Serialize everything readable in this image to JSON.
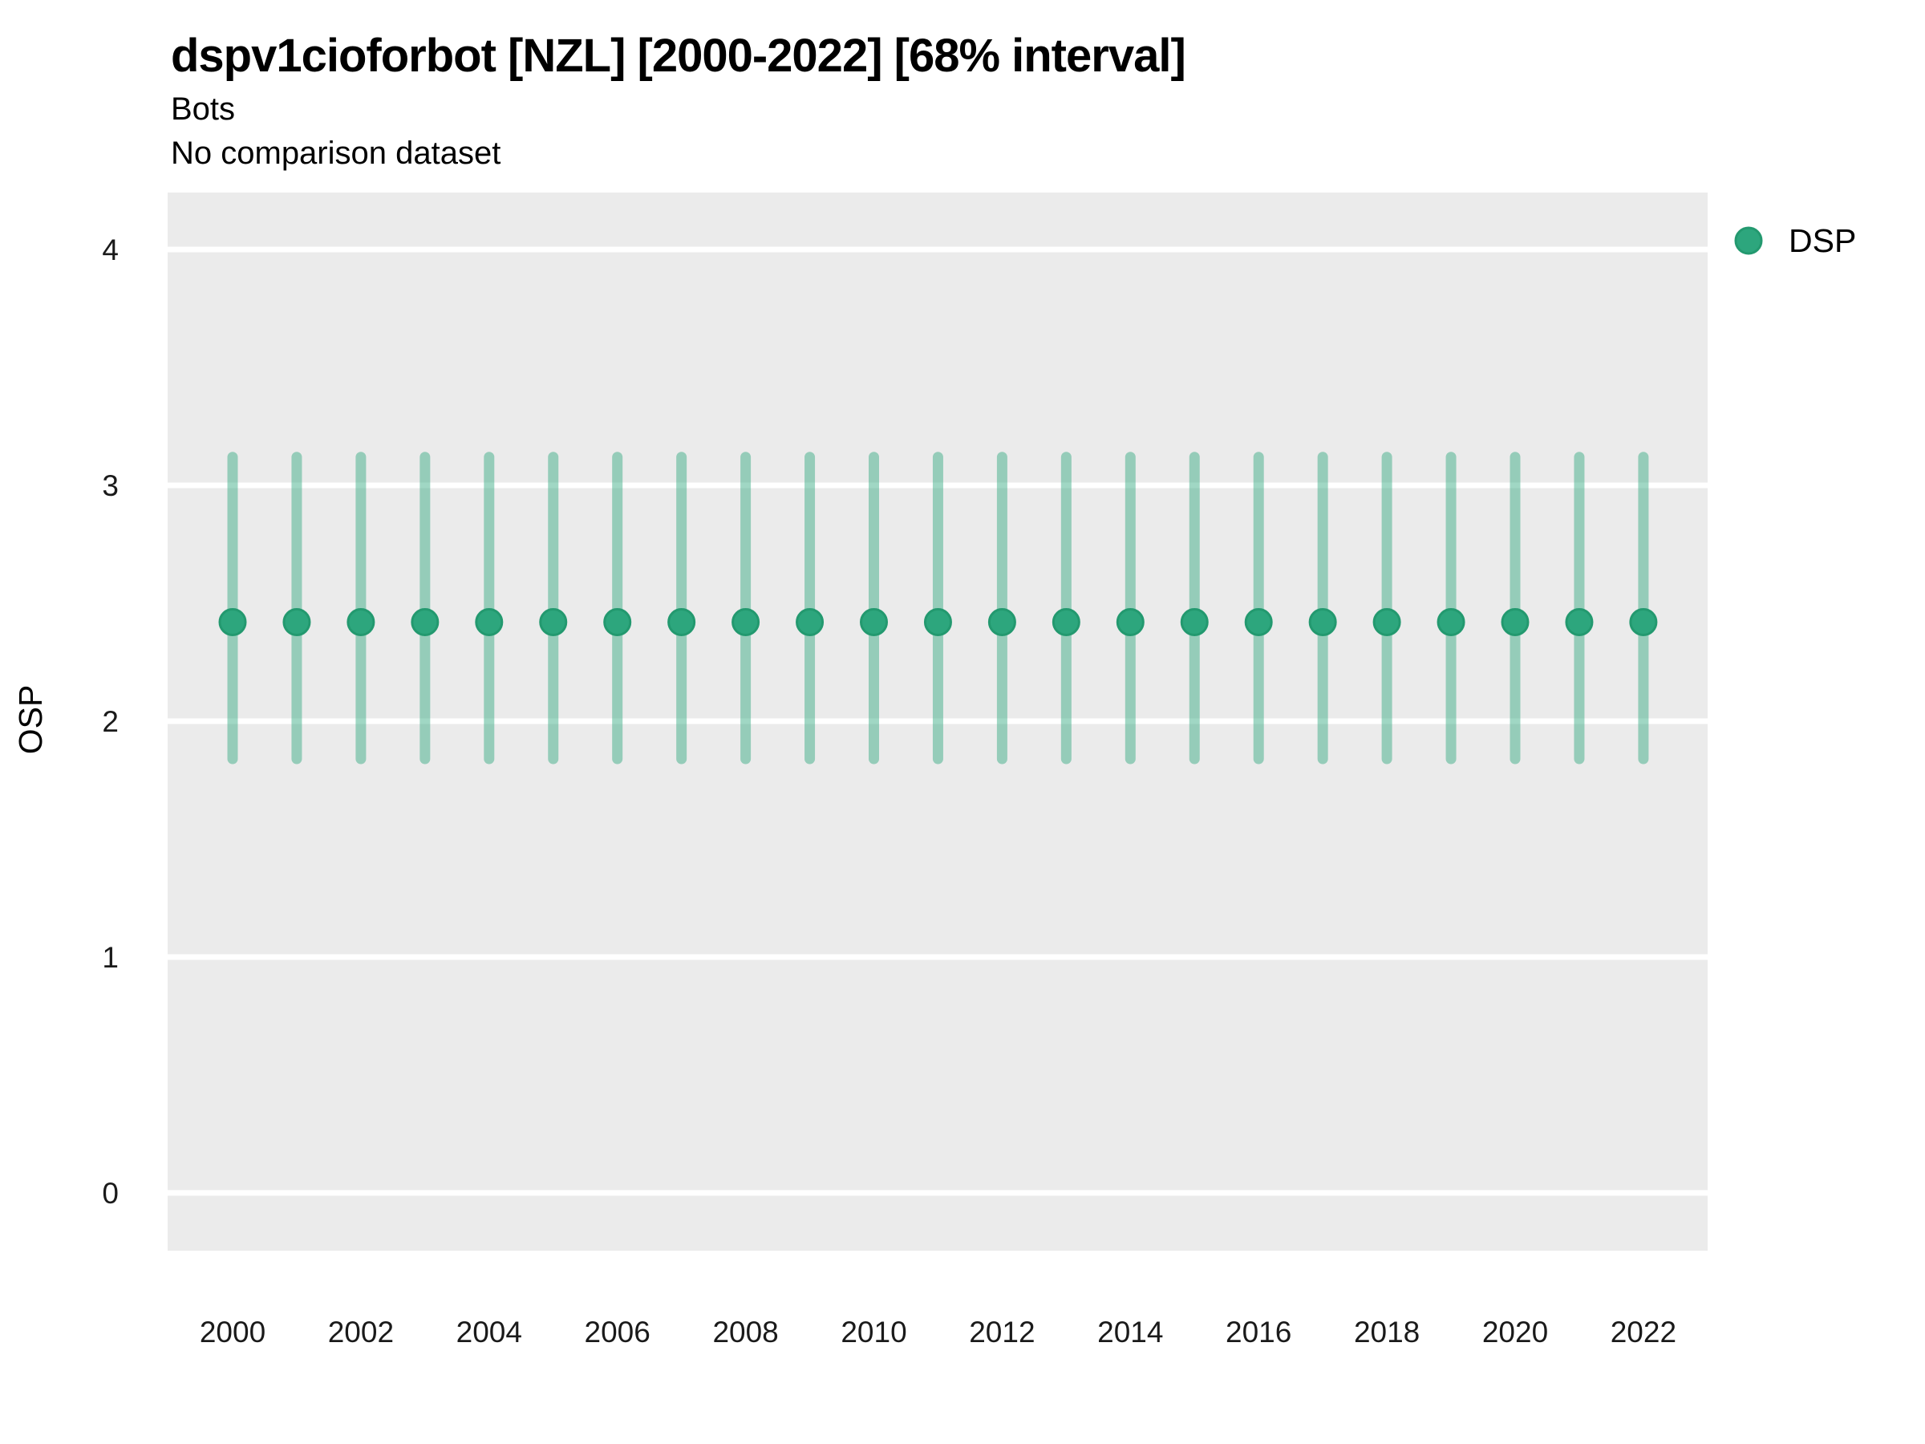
{
  "header": {
    "title": "dspv1cioforbot [NZL] [2000-2022] [68% interval]",
    "subtitle": "Bots",
    "note": "No comparison dataset"
  },
  "chart_data": {
    "type": "scatter",
    "variant": "pointrange",
    "title": "dspv1cioforbot [NZL] [2000-2022] [68% interval]",
    "subtitle": "Bots",
    "note": "No comparison dataset",
    "xlabel": "",
    "ylabel": "OSP",
    "interval": "68%",
    "x": [
      2000,
      2001,
      2002,
      2003,
      2004,
      2005,
      2006,
      2007,
      2008,
      2009,
      2010,
      2011,
      2012,
      2013,
      2014,
      2015,
      2016,
      2017,
      2018,
      2019,
      2020,
      2021,
      2022
    ],
    "series": [
      {
        "name": "DSP",
        "color": "#2da67d",
        "point_stroke": "#23996f",
        "interval_opacity": 0.45,
        "values": [
          2.42,
          2.42,
          2.42,
          2.42,
          2.42,
          2.42,
          2.42,
          2.42,
          2.42,
          2.42,
          2.42,
          2.42,
          2.42,
          2.42,
          2.42,
          2.42,
          2.42,
          2.42,
          2.42,
          2.42,
          2.42,
          2.42,
          2.42
        ],
        "lo": [
          1.84,
          1.84,
          1.84,
          1.84,
          1.84,
          1.84,
          1.84,
          1.84,
          1.84,
          1.84,
          1.84,
          1.84,
          1.84,
          1.84,
          1.84,
          1.84,
          1.84,
          1.84,
          1.84,
          1.84,
          1.84,
          1.84,
          1.84
        ],
        "hi": [
          3.12,
          3.12,
          3.12,
          3.12,
          3.12,
          3.12,
          3.12,
          3.12,
          3.12,
          3.12,
          3.12,
          3.12,
          3.12,
          3.12,
          3.12,
          3.12,
          3.12,
          3.12,
          3.12,
          3.12,
          3.12,
          3.12,
          3.12
        ]
      }
    ],
    "x_ticks": [
      2000,
      2002,
      2004,
      2006,
      2008,
      2010,
      2012,
      2014,
      2016,
      2018,
      2020,
      2022
    ],
    "y_ticks": [
      0,
      1,
      2,
      3,
      4
    ],
    "ylim": [
      0,
      4
    ],
    "grid": true,
    "panel_bg": "#EBEBEB",
    "grid_color": "#FFFFFF",
    "legend": {
      "position": "top-right",
      "entries": [
        {
          "label": "DSP",
          "color": "#2da67d"
        }
      ]
    }
  }
}
